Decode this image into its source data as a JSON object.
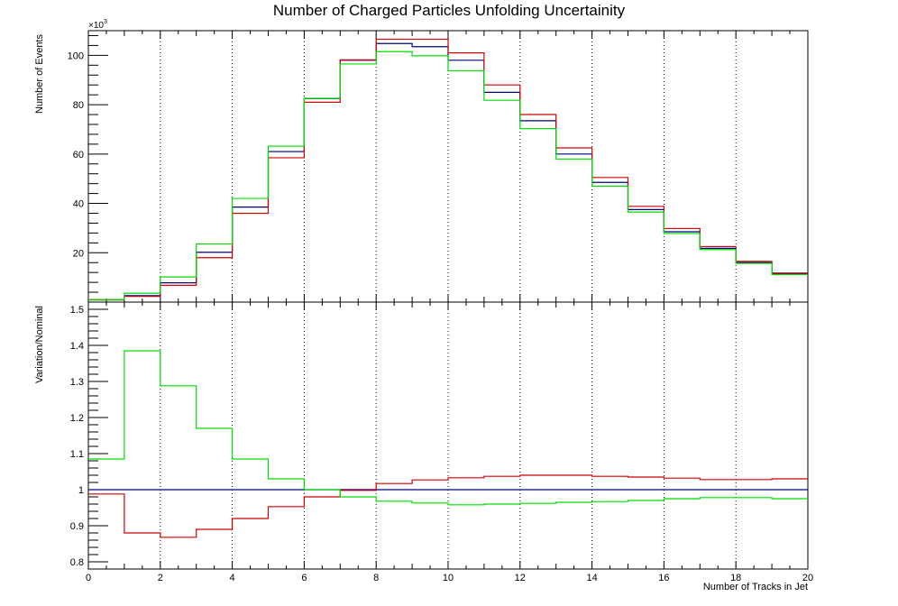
{
  "title": "Number of Charged Particles Unfolding Uncertainity",
  "colors": {
    "nominal": "#000080",
    "up": "#d40000",
    "down": "#00dd00"
  },
  "chart_data": [
    {
      "type": "line",
      "panel": "top",
      "ylabel": "Number of Events",
      "y_exponent_label": "×10",
      "y_exponent": "3",
      "ylim": [
        0,
        110
      ],
      "y_ticks": [
        20,
        40,
        60,
        80,
        100
      ],
      "xlim": [
        0,
        20
      ],
      "x_bin_edges": [
        0,
        1,
        2,
        3,
        4,
        5,
        6,
        7,
        8,
        9,
        10,
        11,
        12,
        13,
        14,
        15,
        16,
        17,
        18,
        19,
        20
      ],
      "series": [
        {
          "color_key": "nominal",
          "values": [
            0.9,
            2.6,
            7.8,
            20.2,
            38.5,
            61.0,
            82.5,
            98.0,
            104.8,
            103.5,
            98.0,
            85.0,
            73.5,
            60.0,
            48.5,
            37.5,
            28.5,
            21.8,
            16.0,
            11.5
          ]
        },
        {
          "color_key": "up",
          "values": [
            0.9,
            2.3,
            6.8,
            18.0,
            36.0,
            58.5,
            81.0,
            98.2,
            106.5,
            106.5,
            101.0,
            88.0,
            76.0,
            62.5,
            50.5,
            38.8,
            29.8,
            22.5,
            16.5,
            11.8
          ]
        },
        {
          "color_key": "down",
          "values": [
            1.0,
            3.6,
            10.2,
            23.6,
            42.0,
            63.2,
            82.6,
            96.5,
            101.5,
            99.8,
            93.8,
            81.8,
            70.3,
            58.0,
            47.0,
            36.5,
            27.8,
            21.3,
            15.7,
            11.2
          ]
        }
      ],
      "grid_x": [
        2,
        4,
        6,
        8,
        10,
        12,
        14,
        16,
        18
      ]
    },
    {
      "type": "line",
      "panel": "bottom",
      "ylabel": "Variation/Nominal",
      "xlabel": "Number of Tracks in Jet",
      "ylim": [
        0.78,
        1.52
      ],
      "y_ticks": [
        0.8,
        0.9,
        1,
        1.1,
        1.2,
        1.3,
        1.4,
        1.5
      ],
      "y_tick_labels": [
        "0.8",
        "0.9",
        "1",
        "1.1",
        "1.2",
        "1.3",
        "1.4",
        "1.5"
      ],
      "xlim": [
        0,
        20
      ],
      "x_ticks": [
        0,
        2,
        4,
        6,
        8,
        10,
        12,
        14,
        16,
        18,
        20
      ],
      "x_bin_edges": [
        0,
        1,
        2,
        3,
        4,
        5,
        6,
        7,
        8,
        9,
        10,
        11,
        12,
        13,
        14,
        15,
        16,
        17,
        18,
        19,
        20
      ],
      "series": [
        {
          "color_key": "nominal",
          "values": [
            1,
            1,
            1,
            1,
            1,
            1,
            1,
            1,
            1,
            1,
            1,
            1,
            1,
            1,
            1,
            1,
            1,
            1,
            1,
            1
          ]
        },
        {
          "color_key": "up",
          "values": [
            0.988,
            0.88,
            0.868,
            0.89,
            0.92,
            0.953,
            0.98,
            0.998,
            1.017,
            1.027,
            1.033,
            1.037,
            1.04,
            1.04,
            1.037,
            1.035,
            1.032,
            1.028,
            1.028,
            1.03
          ]
        },
        {
          "color_key": "down",
          "values": [
            1.085,
            1.385,
            1.288,
            1.17,
            1.085,
            1.03,
            1.0,
            0.98,
            0.968,
            0.963,
            0.958,
            0.96,
            0.962,
            0.965,
            0.967,
            0.97,
            0.975,
            0.978,
            0.978,
            0.975
          ]
        }
      ],
      "grid_x": [
        2,
        4,
        6,
        8,
        10,
        12,
        14,
        16,
        18
      ]
    }
  ]
}
